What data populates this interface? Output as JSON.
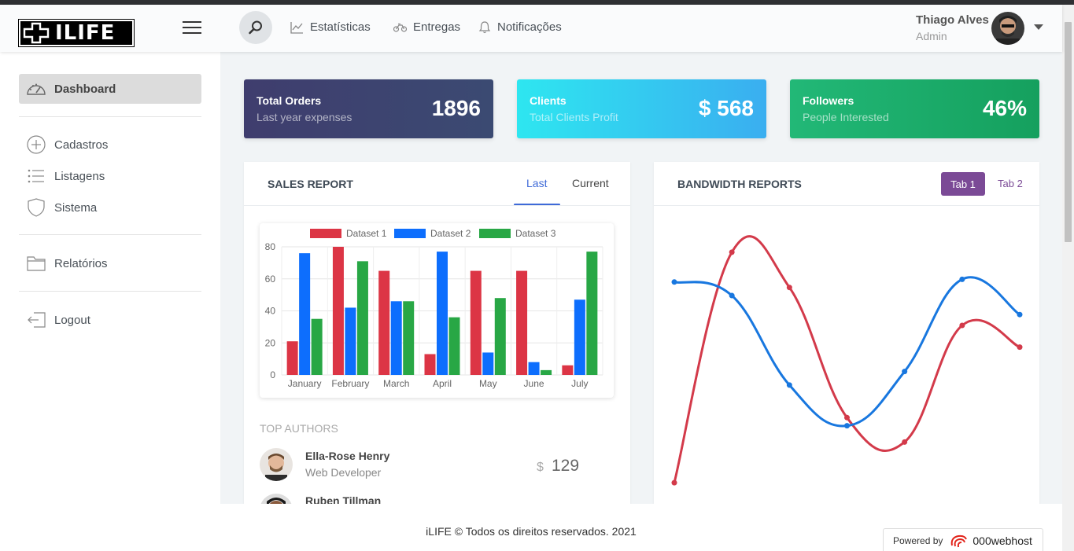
{
  "brand": {
    "name": "ILIFE"
  },
  "nav": {
    "links": [
      {
        "label": "Estatísticas",
        "icon": "chart-line-icon"
      },
      {
        "label": "Entregas",
        "icon": "bicycle-icon"
      },
      {
        "label": "Notificações",
        "icon": "bell-icon"
      }
    ]
  },
  "user": {
    "name": "Thiago Alves",
    "role": "Admin"
  },
  "sidebar": {
    "items": [
      {
        "label": "Dashboard",
        "icon": "dashboard-gauge-icon",
        "active": true
      },
      {
        "label": "Cadastros",
        "icon": "plus-circle-icon"
      },
      {
        "label": "Listagens",
        "icon": "list-icon"
      },
      {
        "label": "Sistema",
        "icon": "shield-icon"
      },
      {
        "label": "Relatórios",
        "icon": "folder-icon"
      },
      {
        "label": "Logout",
        "icon": "logout-icon"
      }
    ]
  },
  "stats": [
    {
      "title": "Total Orders",
      "subtitle": "Last year expenses",
      "value": "1896",
      "color_from": "#3f3d6e",
      "color_to": "#3b4a72"
    },
    {
      "title": "Clients",
      "subtitle": "Total Clients Profit",
      "value": "$ 568",
      "color_from": "#2ee6f0",
      "color_to": "#3aaef0"
    },
    {
      "title": "Followers",
      "subtitle": "People Interested",
      "value": "46%",
      "color_from": "#22b877",
      "color_to": "#15a05e"
    }
  ],
  "sales": {
    "title": "SALES REPORT",
    "tabs": [
      "Last",
      "Current"
    ],
    "active_tab": "Last",
    "top_authors_label": "TOP AUTHORS",
    "authors": [
      {
        "name": "Ella-Rose Henry",
        "role": "Web Developer",
        "currency": "$",
        "amount": "129"
      },
      {
        "name": "Ruben Tillman"
      }
    ]
  },
  "bandwidth": {
    "title": "BANDWIDTH REPORTS",
    "tabs": [
      "Tab 1",
      "Tab 2"
    ],
    "active_tab": "Tab 1",
    "accent": "#7b4a96"
  },
  "chart_data": [
    {
      "type": "bar",
      "categories": [
        "January",
        "February",
        "March",
        "April",
        "May",
        "June",
        "July"
      ],
      "series": [
        {
          "name": "Dataset 1",
          "color": "#dc3545",
          "values": [
            21,
            80,
            65,
            13,
            65,
            65,
            6
          ]
        },
        {
          "name": "Dataset 2",
          "color": "#0d6efd",
          "values": [
            76,
            42,
            46,
            77,
            14,
            8,
            47
          ]
        },
        {
          "name": "Dataset 3",
          "color": "#28a745",
          "values": [
            35,
            71,
            46,
            36,
            48,
            3,
            77
          ]
        }
      ],
      "yticks": [
        "80",
        "60",
        "40",
        "20",
        "0"
      ],
      "ylim": [
        0,
        80
      ],
      "legend": "top",
      "grid": true
    },
    {
      "type": "line",
      "series": [
        {
          "color": "#d33a4a",
          "values": [
            2,
            87,
            74,
            26,
            17,
            60,
            52
          ]
        },
        {
          "color": "#1877df",
          "values": [
            76,
            71,
            38,
            23,
            43,
            77,
            64
          ]
        }
      ],
      "ylim": [
        0,
        100
      ],
      "axes": false,
      "grid": false
    }
  ],
  "footer": {
    "text": "iLIFE © Todos os direitos reservados. 2021",
    "powered_label": "Powered by",
    "powered_brand": "000webhost"
  }
}
